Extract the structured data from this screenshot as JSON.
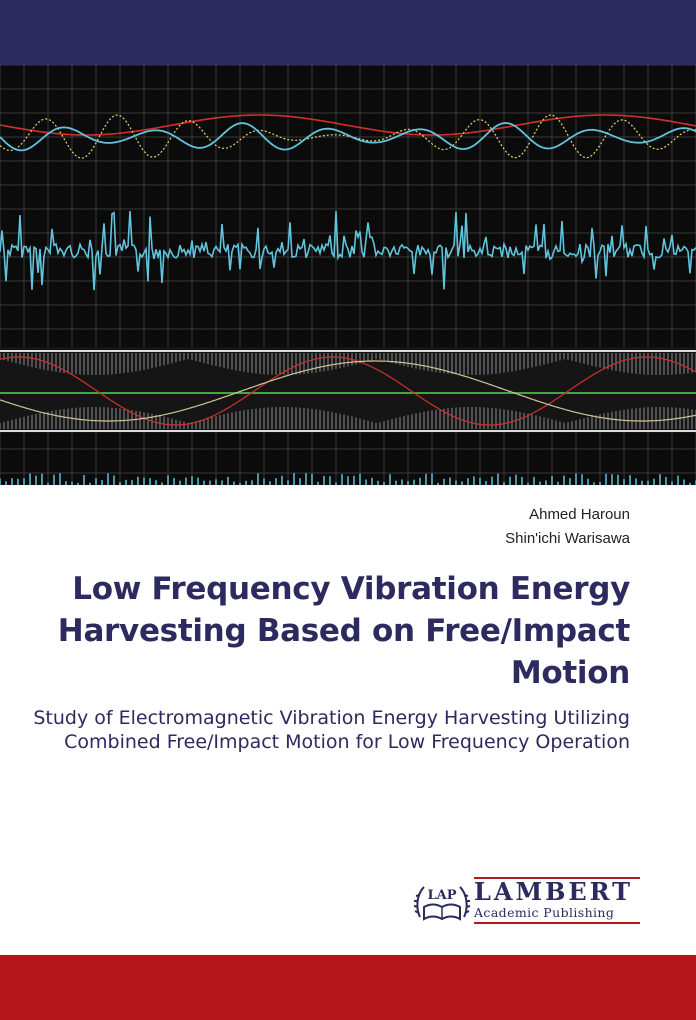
{
  "cover": {
    "colors": {
      "band_top": "#2c2a5e",
      "band_bottom": "#b3171a",
      "image_bg": "#0b0b0b",
      "trace_cyan": "#5fc4dc",
      "trace_red": "#d2302c",
      "trace_yellow": "#e6d36a",
      "trace_green": "#3fa83c"
    },
    "authors": [
      "Ahmed Haroun",
      "Shin'ichi Warisawa"
    ],
    "title": "Low Frequency Vibration Energy Harvesting Based on Free/Impact Motion",
    "subtitle": "Study of Electromagnetic Vibration Energy Harvesting Utilizing Combined Free/Impact Motion for Low Frequency Operation"
  },
  "publisher": {
    "emblem_text": "LAP",
    "name": "LAMBERT",
    "tagline": "Academic Publishing"
  }
}
